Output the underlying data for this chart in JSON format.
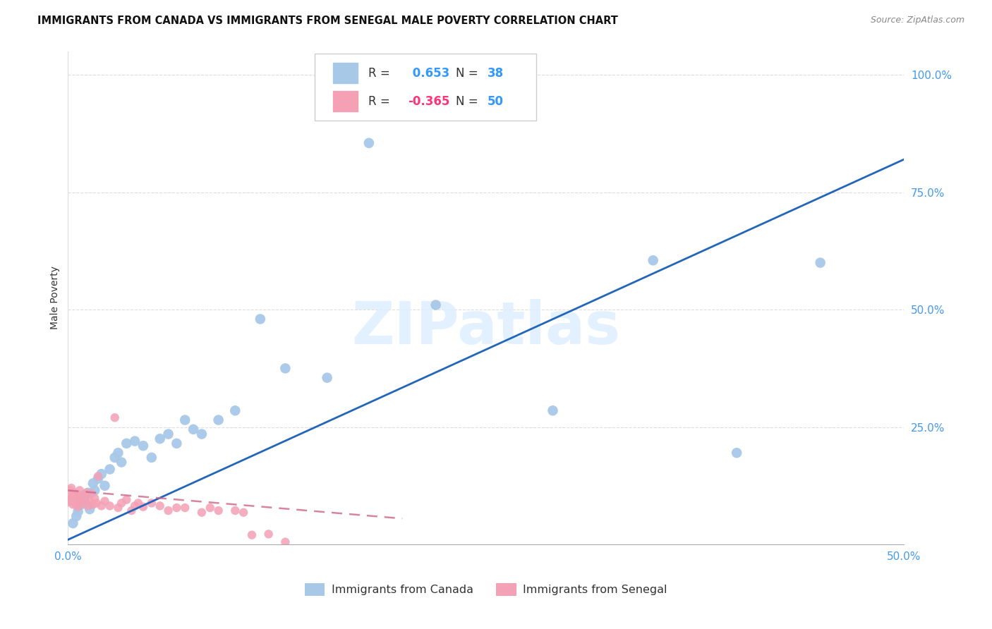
{
  "title": "IMMIGRANTS FROM CANADA VS IMMIGRANTS FROM SENEGAL MALE POVERTY CORRELATION CHART",
  "source": "Source: ZipAtlas.com",
  "ylabel": "Male Poverty",
  "xlim": [
    0,
    0.5
  ],
  "ylim": [
    0,
    1.05
  ],
  "canada_color": "#a8c8e8",
  "senegal_color": "#f4a0b5",
  "canada_line_color": "#2266bb",
  "senegal_line_color": "#cc6688",
  "canada_R": 0.653,
  "canada_N": 38,
  "senegal_R": -0.365,
  "senegal_N": 50,
  "canada_x": [
    0.003,
    0.005,
    0.006,
    0.007,
    0.008,
    0.01,
    0.012,
    0.013,
    0.015,
    0.016,
    0.018,
    0.02,
    0.022,
    0.025,
    0.028,
    0.03,
    0.032,
    0.035,
    0.04,
    0.045,
    0.05,
    0.055,
    0.06,
    0.065,
    0.07,
    0.075,
    0.08,
    0.09,
    0.1,
    0.115,
    0.13,
    0.155,
    0.18,
    0.22,
    0.29,
    0.35,
    0.4,
    0.45
  ],
  "canada_y": [
    0.045,
    0.06,
    0.07,
    0.1,
    0.085,
    0.095,
    0.11,
    0.075,
    0.13,
    0.115,
    0.14,
    0.15,
    0.125,
    0.16,
    0.185,
    0.195,
    0.175,
    0.215,
    0.22,
    0.21,
    0.185,
    0.225,
    0.235,
    0.215,
    0.265,
    0.245,
    0.235,
    0.265,
    0.285,
    0.48,
    0.375,
    0.355,
    0.855,
    0.51,
    0.285,
    0.605,
    0.195,
    0.6
  ],
  "senegal_x": [
    0.0,
    0.001,
    0.001,
    0.002,
    0.002,
    0.003,
    0.003,
    0.004,
    0.004,
    0.005,
    0.005,
    0.006,
    0.006,
    0.007,
    0.007,
    0.008,
    0.009,
    0.01,
    0.011,
    0.012,
    0.013,
    0.014,
    0.015,
    0.016,
    0.017,
    0.018,
    0.02,
    0.022,
    0.025,
    0.028,
    0.03,
    0.032,
    0.035,
    0.038,
    0.04,
    0.042,
    0.045,
    0.05,
    0.055,
    0.06,
    0.065,
    0.07,
    0.08,
    0.085,
    0.09,
    0.1,
    0.105,
    0.11,
    0.12,
    0.13
  ],
  "senegal_y": [
    0.09,
    0.095,
    0.115,
    0.1,
    0.12,
    0.085,
    0.105,
    0.09,
    0.11,
    0.085,
    0.1,
    0.095,
    0.08,
    0.092,
    0.115,
    0.105,
    0.088,
    0.098,
    0.11,
    0.082,
    0.092,
    0.108,
    0.085,
    0.098,
    0.088,
    0.145,
    0.082,
    0.092,
    0.082,
    0.27,
    0.078,
    0.088,
    0.095,
    0.072,
    0.082,
    0.088,
    0.08,
    0.088,
    0.082,
    0.072,
    0.078,
    0.078,
    0.068,
    0.078,
    0.072,
    0.072,
    0.068,
    0.02,
    0.022,
    0.005
  ],
  "canada_line_x0": 0.0,
  "canada_line_x1": 0.5,
  "canada_line_y0": 0.01,
  "canada_line_y1": 0.82,
  "senegal_line_x0": 0.0,
  "senegal_line_x1": 0.2,
  "senegal_line_y0": 0.115,
  "senegal_line_y1": 0.055
}
